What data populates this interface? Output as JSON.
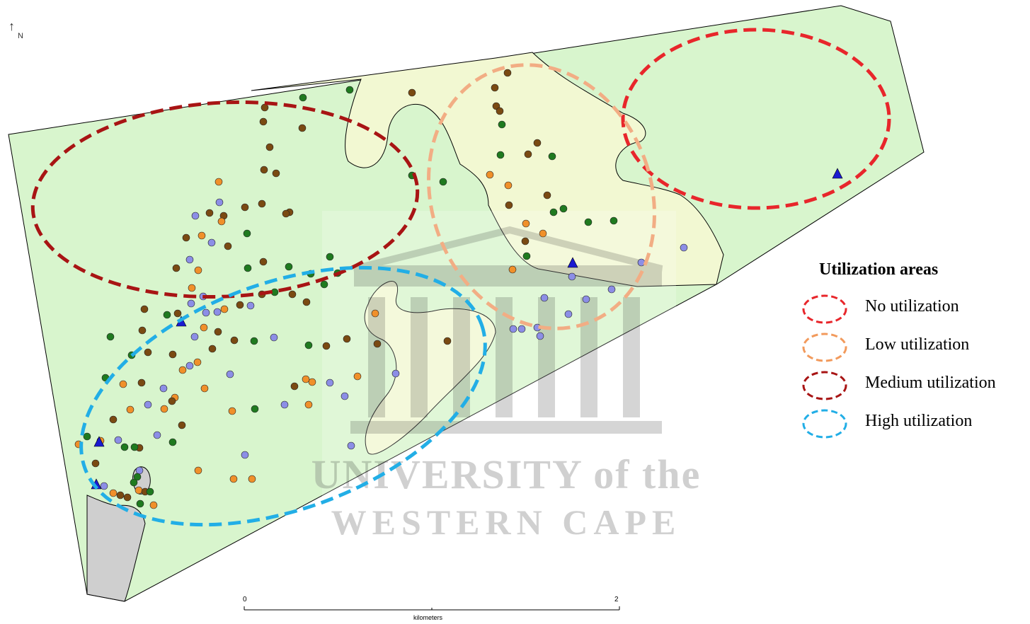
{
  "north_arrow": {
    "symbol": "↑",
    "label": "N"
  },
  "watermark": {
    "line1": "UNIVERSITY of the",
    "line2": "WESTERN CAPE"
  },
  "legend": {
    "title": "Utilization areas",
    "items": [
      {
        "label": "No utilization",
        "color": "#e8262b"
      },
      {
        "label": "Low utilization",
        "color": "#f29a5c"
      },
      {
        "label": "Medium utilization",
        "color": "#a81414"
      },
      {
        "label": "High utilization",
        "color": "#22aee6"
      }
    ]
  },
  "scale_bar": {
    "start": "0",
    "end": "2",
    "unit": "kilometers"
  },
  "colors": {
    "land_green": "#d8f5cd",
    "land_yellow": "#f2f8d2",
    "land_gray": "#cfcfcf",
    "dot_dark_green": "#1f7a1f",
    "dot_brown": "#7a4a12",
    "dot_orange": "#f0902a",
    "dot_lavender": "#8c8ee6",
    "triangle_blue": "#1a1ad0"
  }
}
